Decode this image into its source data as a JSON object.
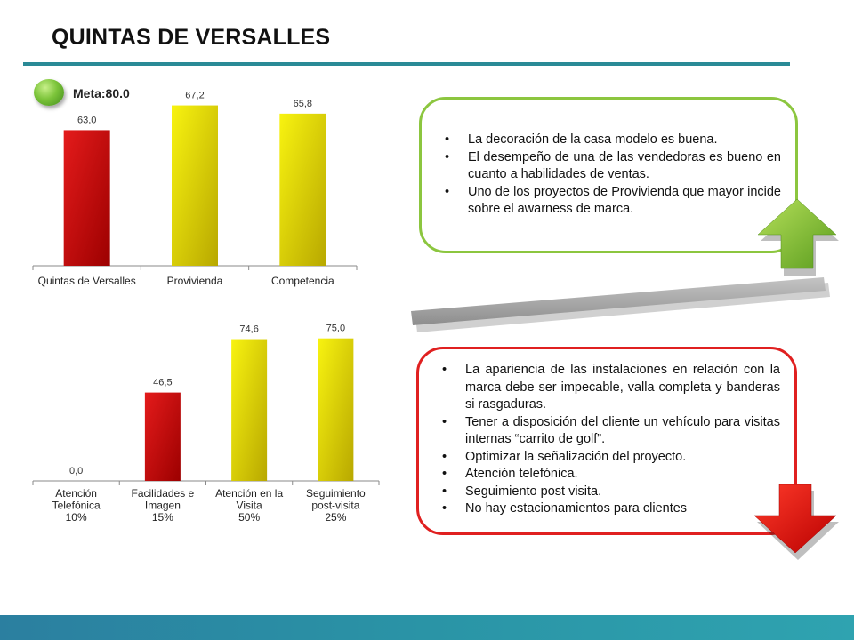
{
  "page": {
    "title": "QUINTAS DE VERSALLES"
  },
  "meta": {
    "label": "Meta:80.0"
  },
  "colors": {
    "red": "#d41414",
    "yellow": "#f5ef10",
    "olive": "#b5a800",
    "green": "#8cc63f",
    "teal": "#2a8a96"
  },
  "chart_data": [
    {
      "type": "bar",
      "categories": [
        "Quintas de Versalles",
        "Provivienda",
        "Competencia"
      ],
      "values": [
        63.0,
        67.2,
        65.8
      ],
      "value_labels": [
        "63,0",
        "67,2",
        "65,8"
      ],
      "bar_colors": [
        "red",
        "yellow",
        "yellow"
      ],
      "ylim": [
        40,
        70
      ],
      "grid": false,
      "xlabel": "",
      "ylabel": ""
    },
    {
      "type": "bar",
      "categories": [
        [
          "Atención",
          "Telefónica",
          "10%"
        ],
        [
          "Facilidades e",
          "Imagen",
          "15%"
        ],
        [
          "Atención en la",
          "Visita",
          "50%"
        ],
        [
          "Seguimiento",
          "post-visita",
          "25%"
        ]
      ],
      "values": [
        0.0,
        46.5,
        74.6,
        75.0
      ],
      "value_labels": [
        "0,0",
        "46,5",
        "74,6",
        "75,0"
      ],
      "bar_colors": [
        "red",
        "red",
        "yellow",
        "yellow"
      ],
      "ylim": [
        0,
        80
      ],
      "grid": false,
      "xlabel": "",
      "ylabel": ""
    }
  ],
  "strengths": {
    "items": [
      "La decoración de la casa modelo es buena.",
      "El desempeño de una de las vendedoras es bueno en cuanto a habilidades de ventas.",
      "Uno de los proyectos de Provivienda que mayor incide sobre el awarness de marca."
    ],
    "arrow": "up-arrow-icon"
  },
  "weaknesses": {
    "items": [
      "La apariencia de las instalaciones en relación con la marca debe ser impecable, valla completa y banderas si rasgaduras.",
      "Tener a disposición del cliente un vehículo para visitas internas “carrito de golf”.",
      "Optimizar la señalización del proyecto.",
      "Atención telefónica.",
      "Seguimiento post visita.",
      "No hay estacionamientos para clientes"
    ],
    "arrow": "down-arrow-icon"
  }
}
